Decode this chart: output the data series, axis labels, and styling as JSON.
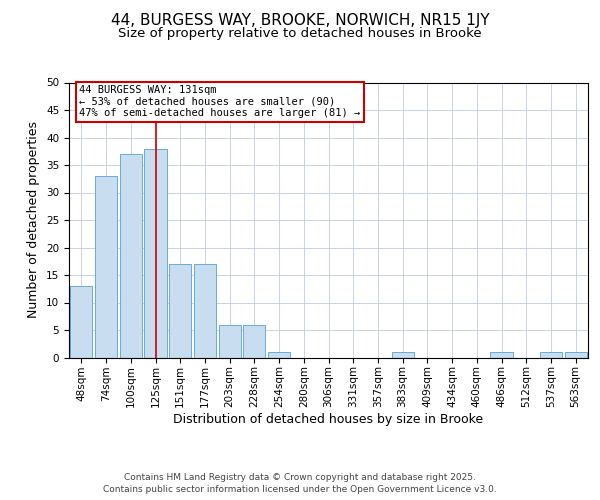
{
  "title_line1": "44, BURGESS WAY, BROOKE, NORWICH, NR15 1JY",
  "title_line2": "Size of property relative to detached houses in Brooke",
  "xlabel": "Distribution of detached houses by size in Brooke",
  "ylabel": "Number of detached properties",
  "categories": [
    "48sqm",
    "74sqm",
    "100sqm",
    "125sqm",
    "151sqm",
    "177sqm",
    "203sqm",
    "228sqm",
    "254sqm",
    "280sqm",
    "306sqm",
    "331sqm",
    "357sqm",
    "383sqm",
    "409sqm",
    "434sqm",
    "460sqm",
    "486sqm",
    "512sqm",
    "537sqm",
    "563sqm"
  ],
  "values": [
    13,
    33,
    37,
    38,
    17,
    17,
    6,
    6,
    1,
    0,
    0,
    0,
    0,
    1,
    0,
    0,
    0,
    1,
    0,
    1,
    1
  ],
  "bar_color": "#c8ddf0",
  "bar_edge_color": "#6aaad4",
  "red_line_x": 3.0,
  "red_line_color": "#cc0000",
  "annotation_text": "44 BURGESS WAY: 131sqm\n← 53% of detached houses are smaller (90)\n47% of semi-detached houses are larger (81) →",
  "annotation_box_color": "#ffffff",
  "annotation_box_edge": "#cc0000",
  "ylim": [
    0,
    50
  ],
  "yticks": [
    0,
    5,
    10,
    15,
    20,
    25,
    30,
    35,
    40,
    45,
    50
  ],
  "background_color": "#ffffff",
  "grid_color": "#c0cce0",
  "footer_line1": "Contains HM Land Registry data © Crown copyright and database right 2025.",
  "footer_line2": "Contains public sector information licensed under the Open Government Licence v3.0.",
  "title_fontsize": 11,
  "subtitle_fontsize": 9.5,
  "axis_label_fontsize": 9,
  "tick_fontsize": 7.5,
  "annotation_fontsize": 7.5,
  "footer_fontsize": 6.5
}
